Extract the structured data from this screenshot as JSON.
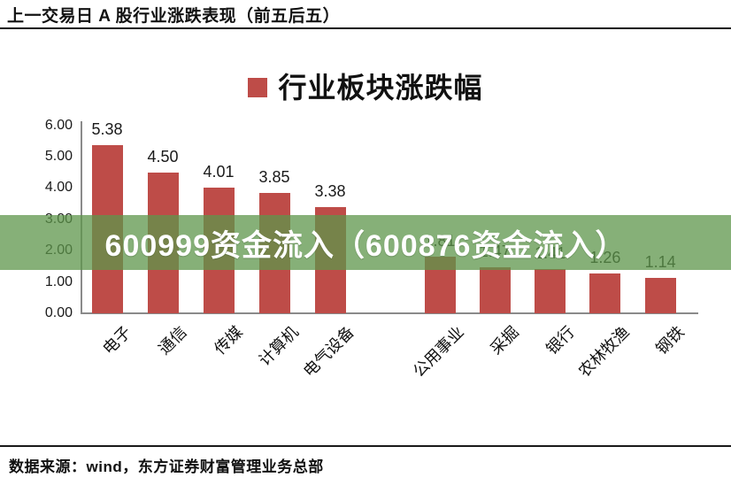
{
  "header": {
    "title": "上一交易日 A 股行业涨跌表现（前五后五）"
  },
  "overlay": {
    "text": "600999资金流入（600876资金流入）"
  },
  "footer": {
    "source": "数据来源：wind，东方证券财富管理业务总部"
  },
  "chart_data": {
    "type": "bar",
    "title": "行业板块涨跌幅",
    "legend": [
      {
        "label": "行业板块涨跌幅",
        "color": "#be4c48"
      }
    ],
    "legend_position": "top-center",
    "categories": [
      "电子",
      "通信",
      "传媒",
      "计算机",
      "电气设备",
      "公用事业",
      "采掘",
      "银行",
      "农林牧渔",
      "钢铁"
    ],
    "values": [
      5.38,
      4.5,
      4.01,
      3.85,
      3.38,
      1.81,
      1.47,
      1.41,
      1.26,
      1.14
    ],
    "value_labels": [
      "5.38",
      "4.50",
      "4.01",
      "3.85",
      "3.38",
      "1.81",
      "1.47",
      "1.41",
      "1.26",
      "1.14"
    ],
    "yticks": [
      "0.00",
      "1.00",
      "2.00",
      "3.00",
      "4.00",
      "5.00",
      "6.00"
    ],
    "ylim": [
      0,
      6
    ],
    "xlabel": "",
    "ylabel": "",
    "bar_color": "#be4c48",
    "grid": false,
    "group_gap_after_index": 4
  }
}
